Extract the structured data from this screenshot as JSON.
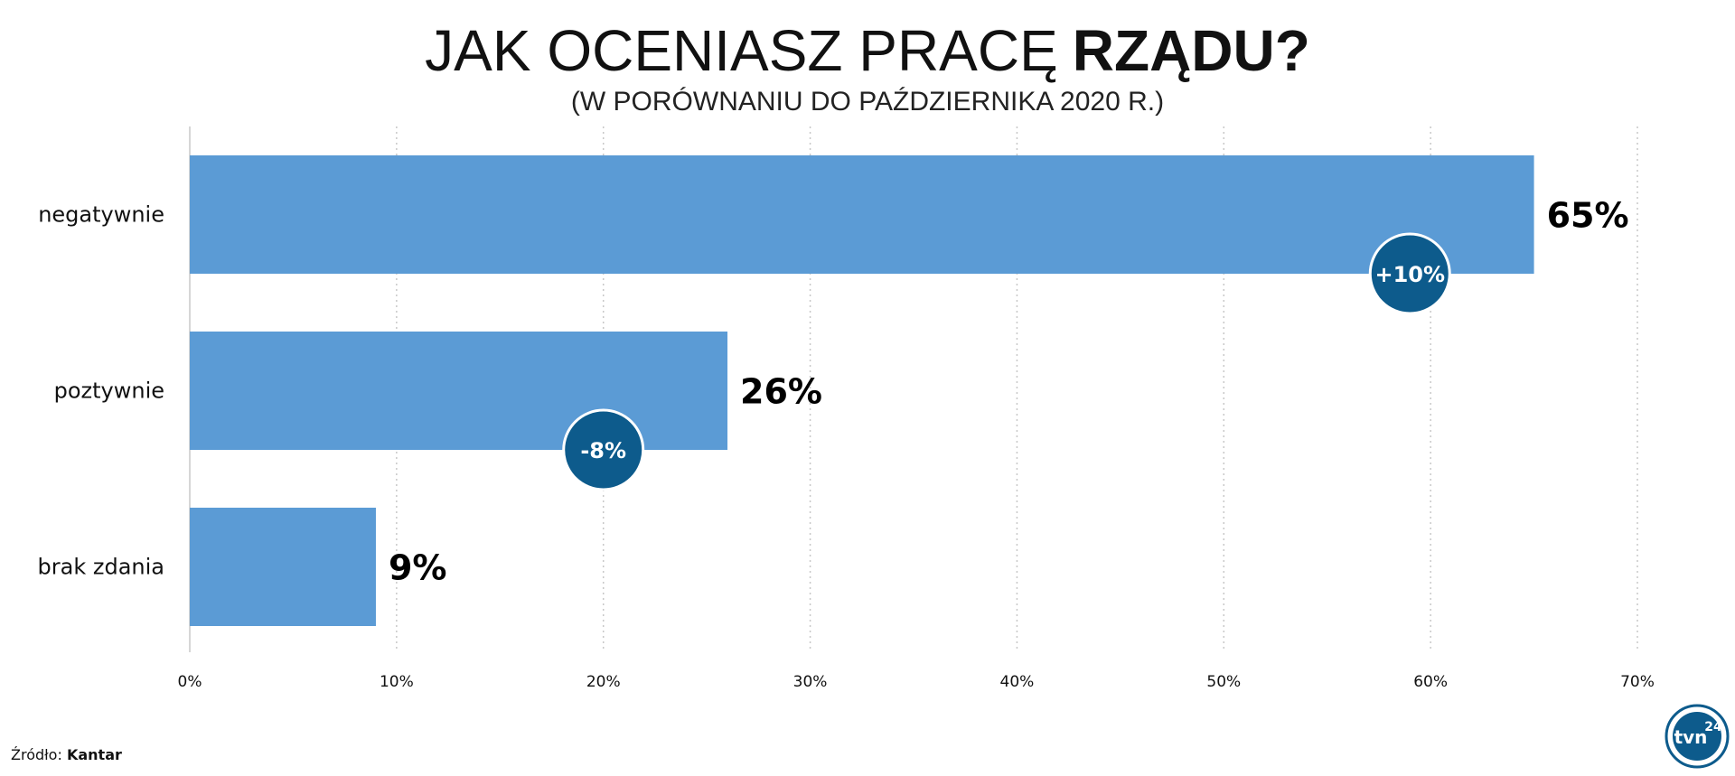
{
  "chart_data": {
    "type": "bar",
    "orientation": "horizontal",
    "title_light": "JAK OCENIASZ PRACĘ",
    "title_bold": "RZĄDU?",
    "subtitle": "(W PORÓWNANIU DO PAŹDZIERNIKA 2020 R.)",
    "categories": [
      "negatywnie",
      "poztywnie",
      "brak zdania"
    ],
    "values": [
      65,
      26,
      9
    ],
    "value_labels": [
      "65%",
      "26%",
      "9%"
    ],
    "changes": [
      {
        "category": "negatywnie",
        "label": "+10%",
        "at": 59
      },
      {
        "category": "poztywnie",
        "label": "-8%",
        "at": 20
      }
    ],
    "xlim": [
      0,
      70
    ],
    "xticks": [
      0,
      10,
      20,
      30,
      40,
      50,
      60,
      70
    ],
    "xtick_labels": [
      "0%",
      "10%",
      "20%",
      "30%",
      "40%",
      "50%",
      "60%",
      "70%"
    ],
    "grid": "vertical dotted",
    "bar_color": "#5b9bd5",
    "badge_color": "#0d5b8c"
  },
  "source": {
    "prefix": "Źródło: ",
    "name": "Kantar"
  },
  "logo": {
    "text": "tvn",
    "number": "24"
  }
}
